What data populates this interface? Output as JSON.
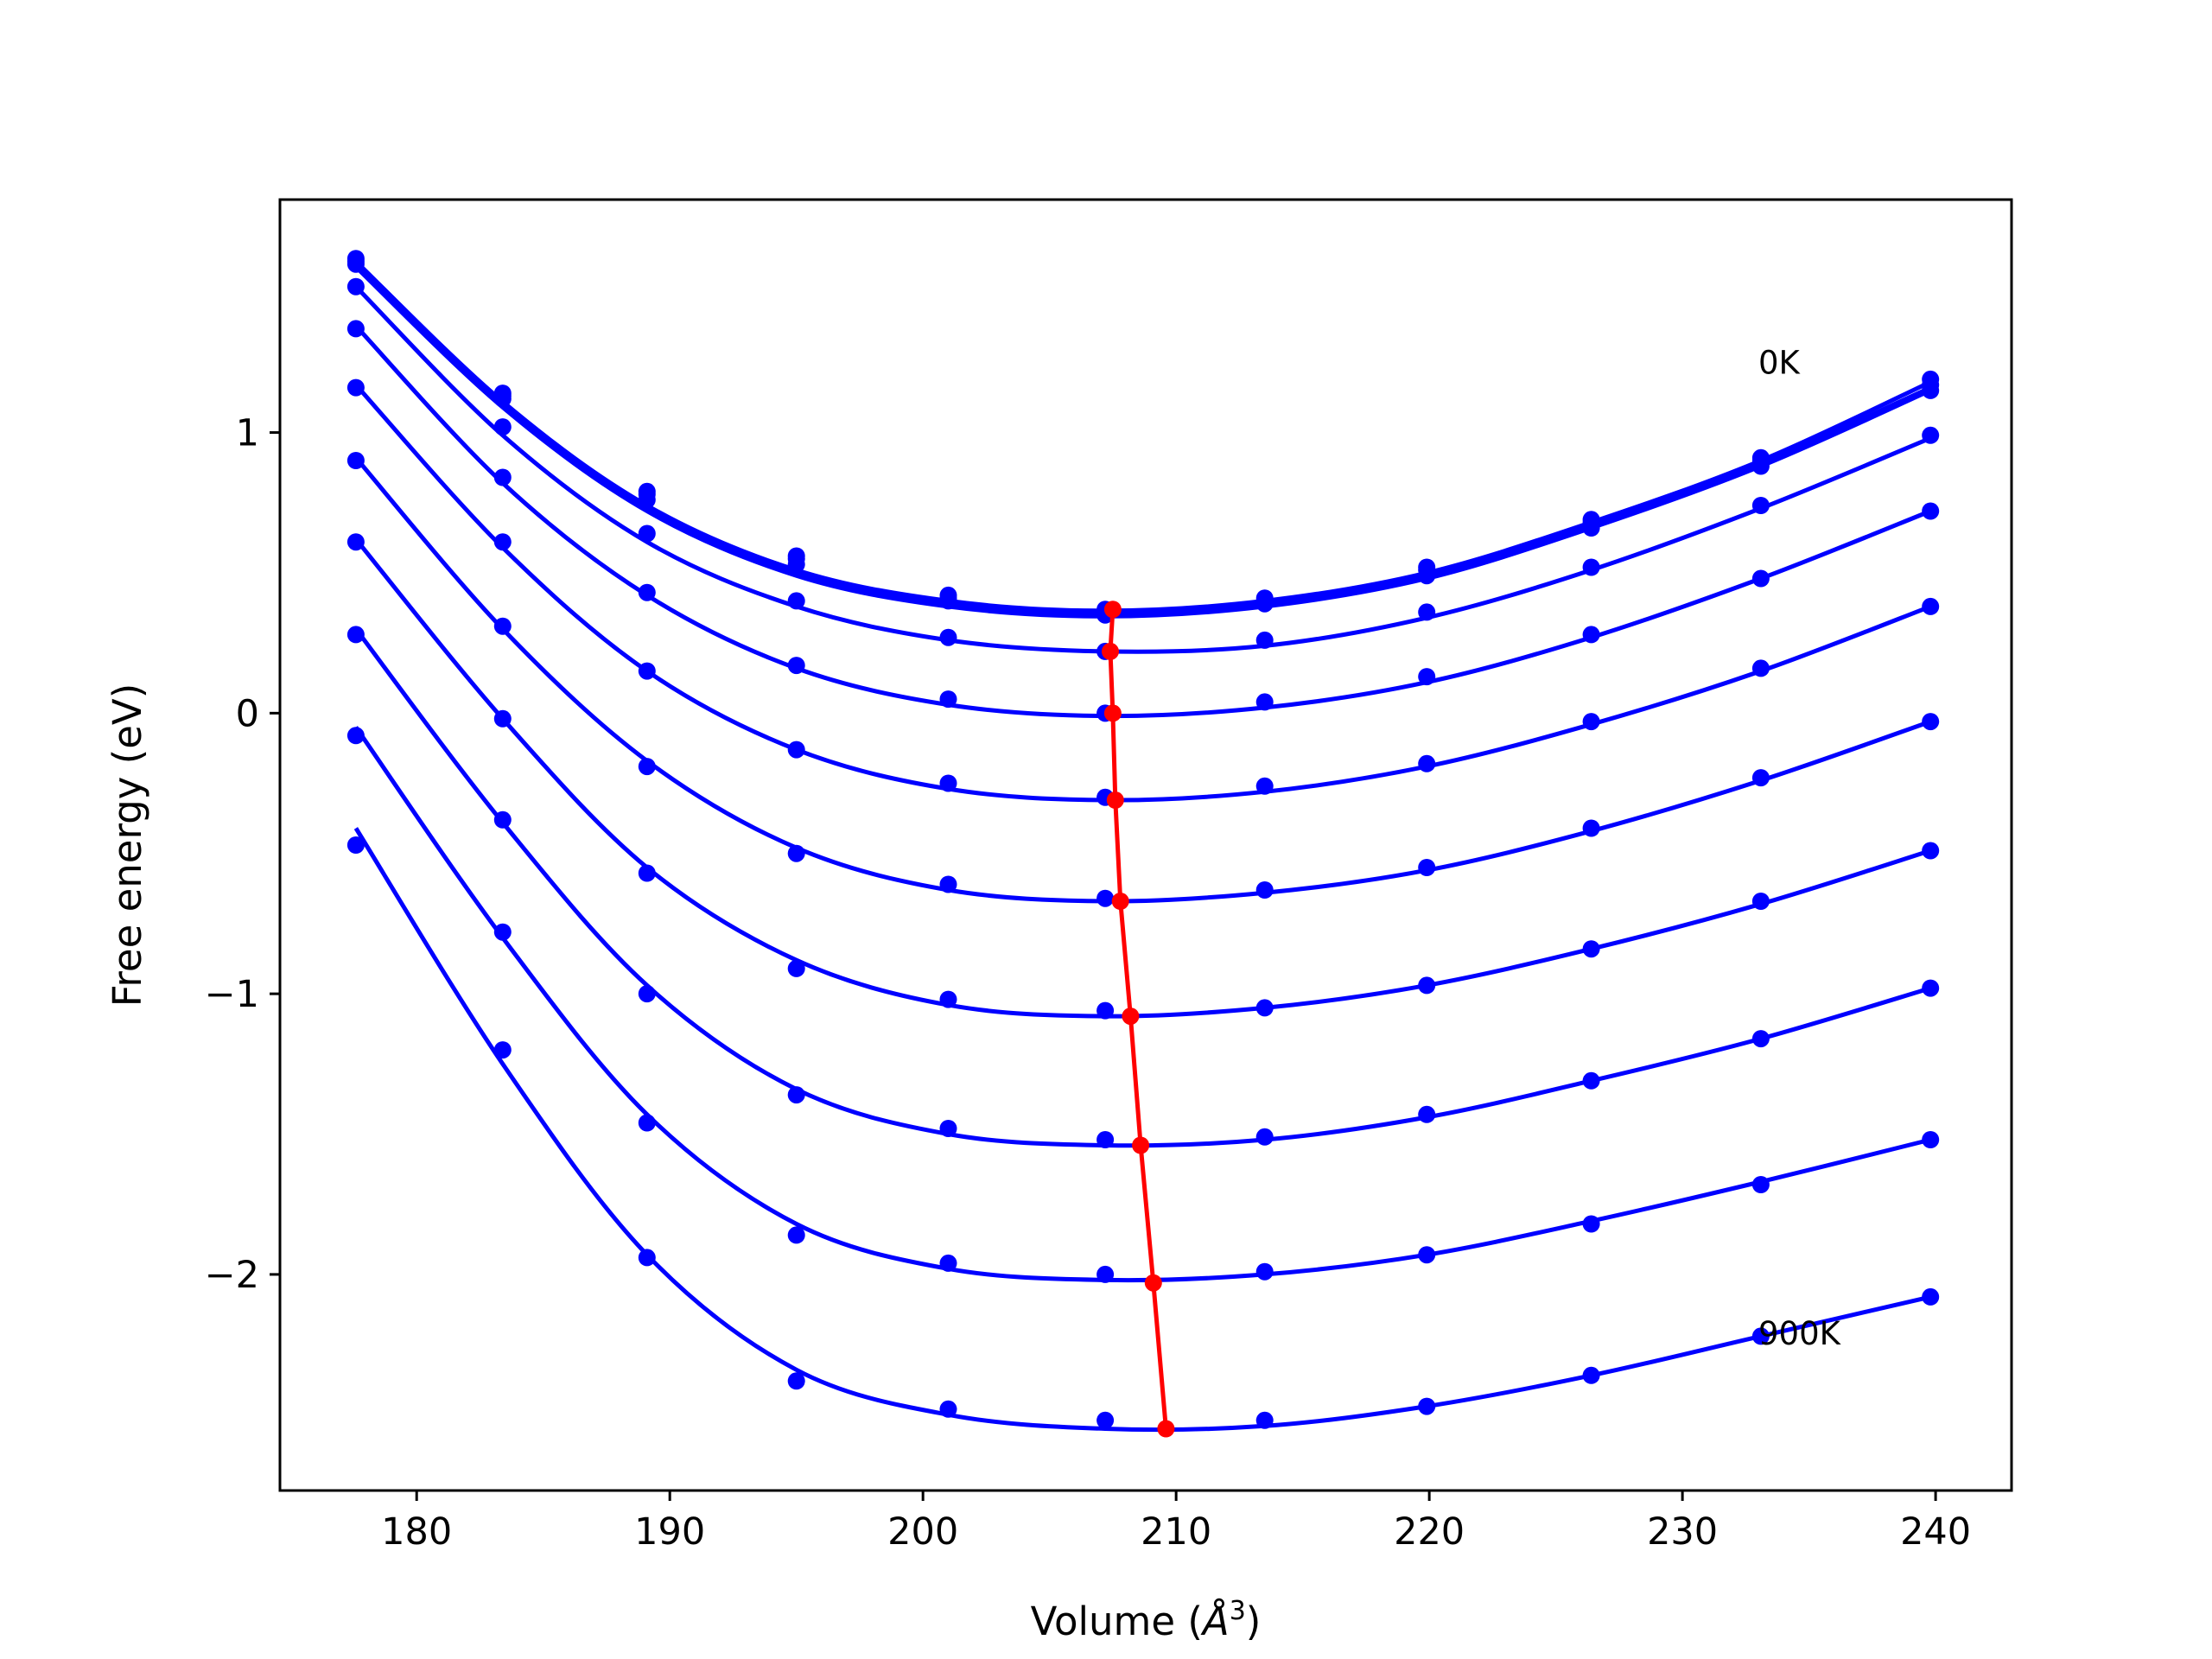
{
  "chart_data": {
    "type": "line",
    "xlabel": "Volume (",
    "xlabel_unit": "Å",
    "xlabel_exp": "3",
    "xlabel_close": ")",
    "ylabel": "Free energy (eV)",
    "xlim": [
      174.6,
      243.0
    ],
    "ylim": [
      -2.77,
      1.83
    ],
    "xticks": [
      180,
      190,
      200,
      210,
      220,
      230,
      240
    ],
    "xtick_labels": [
      "180",
      "190",
      "200",
      "210",
      "220",
      "230",
      "240"
    ],
    "yticks": [
      1,
      0,
      -1,
      -2
    ],
    "ytick_labels": [
      "1",
      "0",
      "−1",
      "−2"
    ],
    "grid": false,
    "annotations": [
      {
        "text": "0K",
        "x": 233.0,
        "y": 1.25
      },
      {
        "text": "900K",
        "x": 233.0,
        "y": -2.21
      }
    ],
    "x": [
      177.6,
      183.4,
      189.1,
      195.0,
      201.0,
      207.2,
      213.5,
      219.9,
      226.4,
      233.1,
      239.8
    ],
    "series": [
      {
        "values": [
          1.62,
          1.14,
          0.79,
          0.56,
          0.42,
          0.37,
          0.41,
          0.52,
          0.69,
          0.91,
          1.19
        ],
        "fit": [
          1.61,
          1.11,
          0.74,
          0.51,
          0.4,
          0.365,
          0.4,
          0.5,
          0.68,
          0.9,
          1.18
        ]
      },
      {
        "values": [
          1.61,
          1.13,
          0.78,
          0.55,
          0.41,
          0.36,
          0.4,
          0.51,
          0.68,
          0.9,
          1.17
        ],
        "fit": [
          1.6,
          1.1,
          0.73,
          0.5,
          0.39,
          0.355,
          0.39,
          0.49,
          0.67,
          0.89,
          1.16
        ]
      },
      {
        "values": [
          1.6,
          1.12,
          0.76,
          0.53,
          0.4,
          0.35,
          0.39,
          0.49,
          0.66,
          0.88,
          1.15
        ],
        "fit": [
          1.59,
          1.09,
          0.72,
          0.49,
          0.38,
          0.345,
          0.38,
          0.48,
          0.66,
          0.88,
          1.15
        ]
      },
      {
        "values": [
          1.52,
          1.02,
          0.64,
          0.4,
          0.27,
          0.22,
          0.26,
          0.36,
          0.52,
          0.74,
          0.99
        ],
        "fit": [
          1.52,
          0.99,
          0.61,
          0.38,
          0.26,
          0.22,
          0.24,
          0.34,
          0.51,
          0.73,
          0.98
        ]
      },
      {
        "values": [
          1.37,
          0.84,
          0.43,
          0.17,
          0.05,
          0.0,
          0.04,
          0.13,
          0.28,
          0.48,
          0.72
        ],
        "fit": [
          1.38,
          0.82,
          0.42,
          0.16,
          0.03,
          -0.01,
          0.02,
          0.11,
          0.27,
          0.48,
          0.72
        ]
      },
      {
        "values": [
          1.16,
          0.61,
          0.15,
          -0.13,
          -0.25,
          -0.3,
          -0.26,
          -0.18,
          -0.03,
          0.16,
          0.38
        ],
        "fit": [
          1.17,
          0.59,
          0.15,
          -0.13,
          -0.27,
          -0.31,
          -0.28,
          -0.19,
          -0.04,
          0.15,
          0.38
        ]
      },
      {
        "values": [
          0.9,
          0.31,
          -0.19,
          -0.5,
          -0.61,
          -0.66,
          -0.63,
          -0.55,
          -0.41,
          -0.23,
          -0.03
        ],
        "fit": [
          0.91,
          0.3,
          -0.17,
          -0.48,
          -0.63,
          -0.67,
          -0.64,
          -0.56,
          -0.42,
          -0.24,
          -0.03
        ]
      },
      {
        "values": [
          0.61,
          -0.02,
          -0.57,
          -0.91,
          -1.02,
          -1.06,
          -1.05,
          -0.97,
          -0.84,
          -0.67,
          -0.49
        ],
        "fit": [
          0.62,
          -0.02,
          -0.55,
          -0.88,
          -1.04,
          -1.08,
          -1.05,
          -0.97,
          -0.84,
          -0.68,
          -0.49
        ]
      },
      {
        "values": [
          0.28,
          -0.38,
          -1.0,
          -1.36,
          -1.48,
          -1.52,
          -1.51,
          -1.43,
          -1.31,
          -1.16,
          -0.98
        ],
        "fit": [
          0.3,
          -0.39,
          -0.97,
          -1.34,
          -1.5,
          -1.54,
          -1.52,
          -1.44,
          -1.31,
          -1.16,
          -0.98
        ]
      },
      {
        "values": [
          -0.08,
          -0.78,
          -1.46,
          -1.86,
          -1.96,
          -2.0,
          -1.99,
          -1.93,
          -1.82,
          -1.68,
          -1.52
        ],
        "fit": [
          -0.05,
          -0.8,
          -1.43,
          -1.82,
          -1.98,
          -2.02,
          -2.0,
          -1.93,
          -1.81,
          -1.67,
          -1.52
        ]
      },
      {
        "values": [
          -0.47,
          -1.2,
          -1.94,
          -2.38,
          -2.48,
          -2.52,
          -2.52,
          -2.47,
          -2.36,
          -2.22,
          -2.08
        ],
        "fit": [
          -0.41,
          -1.25,
          -1.93,
          -2.34,
          -2.5,
          -2.55,
          -2.54,
          -2.47,
          -2.36,
          -2.22,
          -2.08
        ]
      }
    ],
    "minima": {
      "x": [
        207.5,
        207.4,
        207.5,
        207.6,
        207.8,
        208.2,
        208.6,
        209.1,
        209.6
      ],
      "y": [
        0.37,
        0.22,
        0.0,
        -0.31,
        -0.67,
        -1.08,
        -1.54,
        -2.03,
        -2.55
      ]
    },
    "colors": {
      "series": "#0000ff",
      "minima": "#ff0000"
    }
  }
}
